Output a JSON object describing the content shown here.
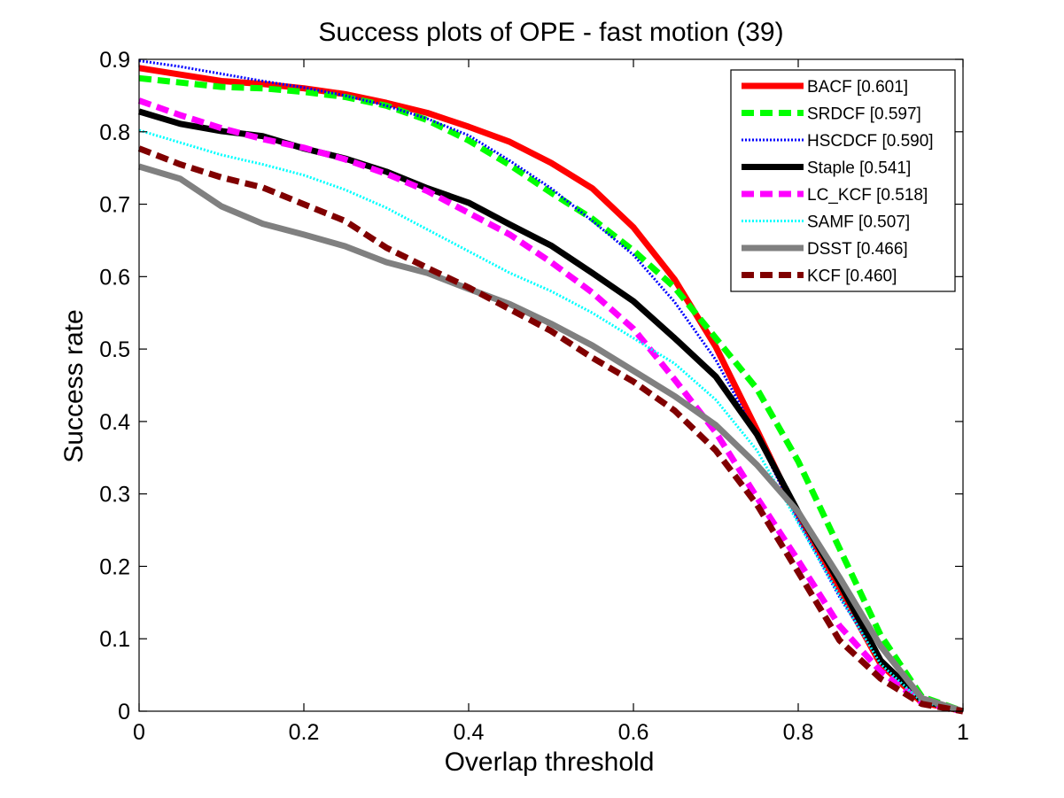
{
  "chart_data": {
    "type": "line",
    "title": "Success plots of OPE - fast motion (39)",
    "xlabel": "Overlap threshold",
    "ylabel": "Success rate",
    "xlim": [
      0,
      1
    ],
    "ylim": [
      0,
      0.9
    ],
    "xticks": [
      "0",
      "0.2",
      "0.4",
      "0.6",
      "0.8",
      "1"
    ],
    "yticks": [
      "0",
      "0.1",
      "0.2",
      "0.3",
      "0.4",
      "0.5",
      "0.6",
      "0.7",
      "0.8",
      "0.9"
    ],
    "grid": false,
    "legend_position": "top-right",
    "x": [
      0,
      0.05,
      0.1,
      0.15,
      0.2,
      0.25,
      0.3,
      0.35,
      0.4,
      0.45,
      0.5,
      0.55,
      0.6,
      0.65,
      0.7,
      0.75,
      0.8,
      0.85,
      0.9,
      0.95,
      1.0
    ],
    "series": [
      {
        "name": "BACF [0.601]",
        "color": "#ff0000",
        "dash": "solid",
        "values": [
          0.888,
          0.879,
          0.87,
          0.866,
          0.86,
          0.852,
          0.84,
          0.826,
          0.807,
          0.786,
          0.757,
          0.722,
          0.668,
          0.596,
          0.503,
          0.388,
          0.27,
          0.168,
          0.065,
          0.012,
          0.0
        ]
      },
      {
        "name": "SRDCF [0.597]",
        "color": "#00ff00",
        "dash": "dashed",
        "values": [
          0.874,
          0.868,
          0.862,
          0.86,
          0.855,
          0.848,
          0.836,
          0.816,
          0.788,
          0.754,
          0.716,
          0.68,
          0.636,
          0.585,
          0.515,
          0.445,
          0.345,
          0.225,
          0.105,
          0.02,
          0.0
        ]
      },
      {
        "name": "HSCDCF [0.590]",
        "color": "#0000ff",
        "dash": "dotted",
        "values": [
          0.898,
          0.89,
          0.88,
          0.87,
          0.861,
          0.85,
          0.836,
          0.818,
          0.795,
          0.76,
          0.722,
          0.677,
          0.63,
          0.565,
          0.485,
          0.38,
          0.262,
          0.158,
          0.068,
          0.015,
          0.0
        ]
      },
      {
        "name": "Staple [0.541]",
        "color": "#000000",
        "dash": "solid",
        "values": [
          0.828,
          0.811,
          0.801,
          0.794,
          0.777,
          0.763,
          0.745,
          0.722,
          0.702,
          0.672,
          0.643,
          0.605,
          0.566,
          0.515,
          0.462,
          0.382,
          0.275,
          0.178,
          0.07,
          0.015,
          0.0
        ]
      },
      {
        "name": "LC_KCF [0.518]",
        "color": "#ff00ff",
        "dash": "dashed",
        "values": [
          0.843,
          0.823,
          0.805,
          0.79,
          0.778,
          0.762,
          0.742,
          0.718,
          0.688,
          0.658,
          0.62,
          0.578,
          0.528,
          0.458,
          0.385,
          0.295,
          0.208,
          0.118,
          0.055,
          0.012,
          0.0
        ]
      },
      {
        "name": "SAMF [0.507]",
        "color": "#00ffff",
        "dash": "dotted",
        "values": [
          0.802,
          0.785,
          0.768,
          0.755,
          0.74,
          0.72,
          0.695,
          0.665,
          0.635,
          0.605,
          0.58,
          0.55,
          0.515,
          0.48,
          0.43,
          0.36,
          0.26,
          0.16,
          0.065,
          0.013,
          0.0
        ]
      },
      {
        "name": "DSST [0.466]",
        "color": "#808080",
        "dash": "solid",
        "values": [
          0.752,
          0.735,
          0.697,
          0.673,
          0.658,
          0.642,
          0.62,
          0.605,
          0.583,
          0.562,
          0.535,
          0.505,
          0.47,
          0.435,
          0.395,
          0.34,
          0.275,
          0.185,
          0.09,
          0.018,
          0.0
        ]
      },
      {
        "name": "KCF [0.460]",
        "color": "#800000",
        "dash": "dashed",
        "values": [
          0.777,
          0.755,
          0.737,
          0.723,
          0.7,
          0.677,
          0.64,
          0.612,
          0.585,
          0.555,
          0.525,
          0.488,
          0.455,
          0.415,
          0.36,
          0.285,
          0.192,
          0.098,
          0.045,
          0.01,
          0.0
        ]
      }
    ]
  }
}
